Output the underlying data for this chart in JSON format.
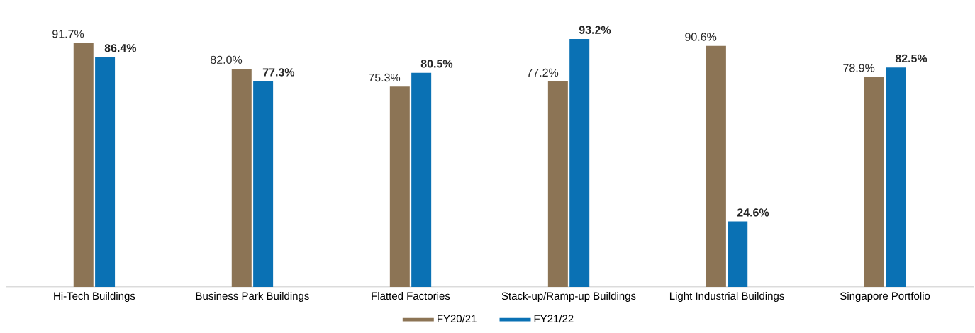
{
  "chart_data": {
    "type": "bar",
    "categories": [
      "Hi-Tech Buildings",
      "Business Park Buildings",
      "Flatted Factories",
      "Stack-up/Ramp-up Buildings",
      "Light Industrial Buildings",
      "Singapore Portfolio"
    ],
    "series": [
      {
        "name": "FY20/21",
        "color": "#8c7455",
        "values": [
          91.7,
          82.0,
          75.3,
          77.2,
          90.6,
          78.9
        ],
        "value_labels": [
          "91.7%",
          "82.0%",
          "75.3%",
          "77.2%",
          "90.6%",
          "78.9%"
        ]
      },
      {
        "name": "FY21/22",
        "color": "#0a71b4",
        "values": [
          86.4,
          77.3,
          80.5,
          93.2,
          24.6,
          82.5
        ],
        "value_labels": [
          "86.4%",
          "77.3%",
          "80.5%",
          "93.2%",
          "24.6%",
          "82.5%"
        ]
      }
    ],
    "legend": "bottom",
    "grid": false
  }
}
